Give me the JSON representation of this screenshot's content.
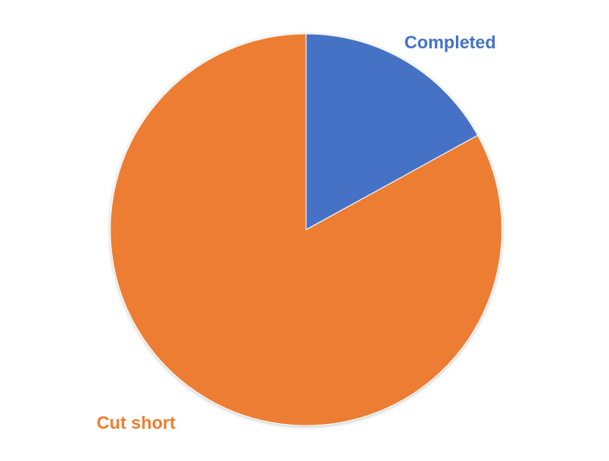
{
  "chart_data": {
    "type": "pie",
    "title": "",
    "slices": [
      {
        "label": "Completed",
        "value": 17,
        "color": "#4472C4"
      },
      {
        "label": "Cut short",
        "value": 83,
        "color": "#ED7D31"
      }
    ],
    "start_angle_deg": 0,
    "direction": "clockwise",
    "legend": "none"
  }
}
